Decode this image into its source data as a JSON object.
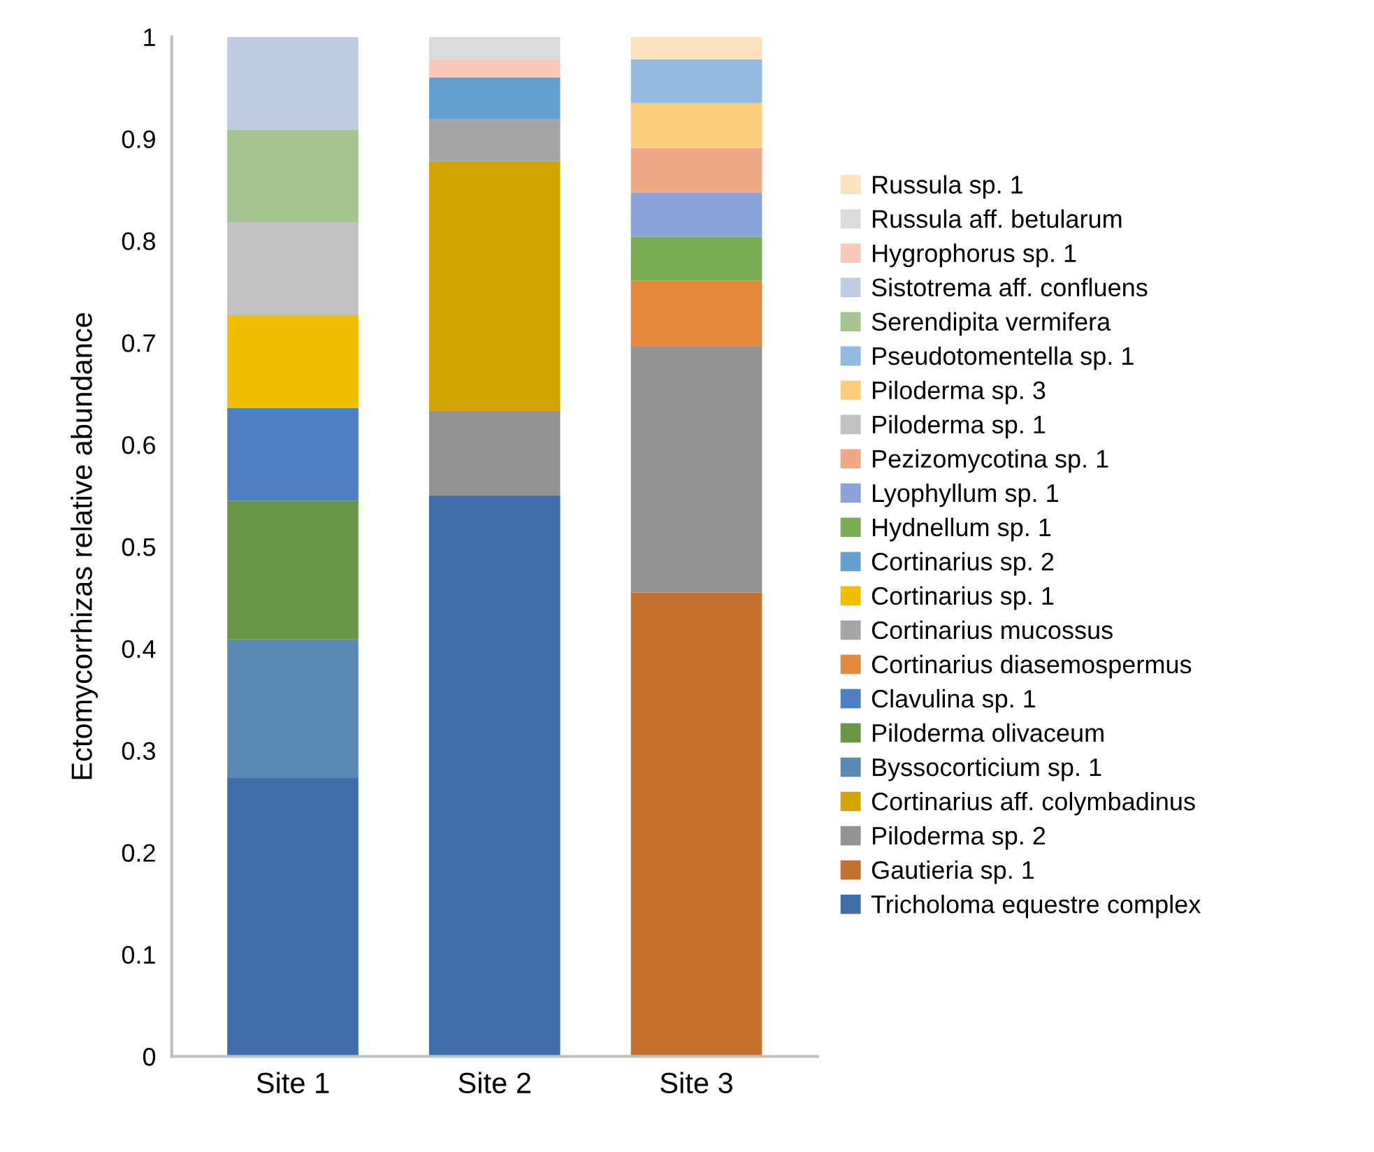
{
  "chart_data": {
    "type": "bar",
    "stacked": true,
    "ylabel": "Ectomycorrhizas relative abundance",
    "categories": [
      "Site 1",
      "Site 2",
      "Site 3"
    ],
    "ylim": [
      0,
      1
    ],
    "yticks": [
      0,
      0.1,
      0.2,
      0.3,
      0.4,
      0.5,
      0.6,
      0.7,
      0.8,
      0.9,
      1
    ],
    "grid": false,
    "legend": "right",
    "series": [
      {
        "name": "Tricholoma equestre complex",
        "color": "#3f6eaa",
        "values": [
          0.273,
          0.55,
          0
        ]
      },
      {
        "name": "Gautieria sp. 1",
        "color": "#c5722f",
        "values": [
          0,
          0,
          0.455
        ]
      },
      {
        "name": "Piloderma sp. 2",
        "color": "#939393",
        "values": [
          0,
          0.083,
          0.241
        ]
      },
      {
        "name": "Cortinarius aff. colymbadinus",
        "color": "#d3a500",
        "values": [
          0,
          0.245,
          0
        ]
      },
      {
        "name": "Byssocorticium sp. 1",
        "color": "#5a8ab5",
        "values": [
          0.136,
          0,
          0
        ]
      },
      {
        "name": "Piloderma olivaceum",
        "color": "#699546",
        "values": [
          0.136,
          0,
          0
        ]
      },
      {
        "name": "Clavulina sp. 1",
        "color": "#4f7fc3",
        "values": [
          0.091,
          0,
          0
        ]
      },
      {
        "name": "Cortinarius diasemospermus",
        "color": "#e3883c",
        "values": [
          0,
          0,
          0.065
        ]
      },
      {
        "name": "Cortinarius mucossus",
        "color": "#a5a5a5",
        "values": [
          0,
          0.041,
          0
        ]
      },
      {
        "name": "Cortinarius sp. 1",
        "color": "#f2bf00",
        "values": [
          0.091,
          0,
          0
        ]
      },
      {
        "name": "Cortinarius sp. 2",
        "color": "#64a0d0",
        "values": [
          0,
          0.041,
          0
        ]
      },
      {
        "name": "Hydnellum sp. 1",
        "color": "#7bad55",
        "values": [
          0,
          0,
          0.043
        ]
      },
      {
        "name": "Lyophyllum sp. 1",
        "color": "#8ba3d8",
        "values": [
          0,
          0,
          0.043
        ]
      },
      {
        "name": "Pezizomycotina sp. 1",
        "color": "#f1a886",
        "values": [
          0,
          0,
          0.044
        ]
      },
      {
        "name": "Piloderma sp. 1",
        "color": "#c1c1c1",
        "values": [
          0.091,
          0,
          0
        ]
      },
      {
        "name": "Piloderma sp. 3",
        "color": "#fccf7e",
        "values": [
          0,
          0,
          0.044
        ]
      },
      {
        "name": "Pseudotomentella sp. 1",
        "color": "#95bae0",
        "values": [
          0,
          0,
          0.043
        ]
      },
      {
        "name": "Serendipita vermifera",
        "color": "#a4c590",
        "values": [
          0.091,
          0,
          0
        ]
      },
      {
        "name": "Sistotrema aff. confluens",
        "color": "#c0cce4",
        "values": [
          0.091,
          0,
          0
        ]
      },
      {
        "name": "Hygrophorus sp. 1",
        "color": "#f8cabc",
        "values": [
          0,
          0.018,
          0
        ]
      },
      {
        "name": "Russula aff. betularum",
        "color": "#dbdbdb",
        "values": [
          0,
          0.022,
          0
        ]
      },
      {
        "name": "Russula sp. 1",
        "color": "#fde3bd",
        "values": [
          0,
          0,
          0.022
        ]
      }
    ]
  }
}
